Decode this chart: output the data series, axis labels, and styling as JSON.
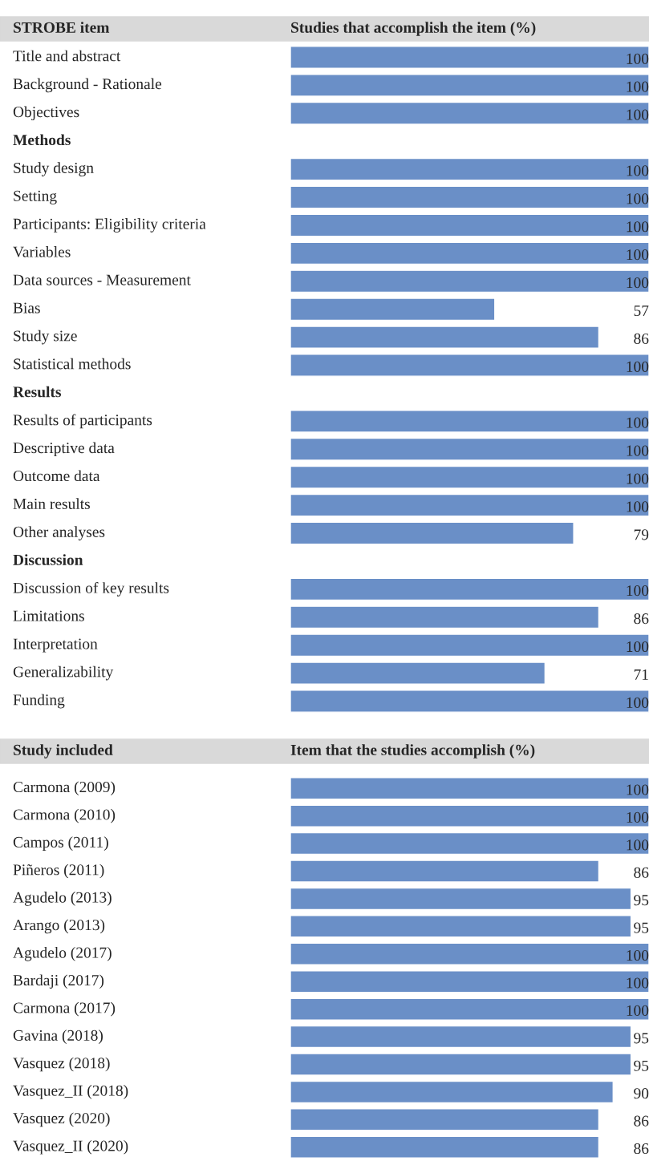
{
  "chart_data": [
    {
      "type": "bar",
      "orientation": "horizontal",
      "ylabel": "STROBE item",
      "xlabel": "Studies that accomplish the item (%)",
      "color": "#6a8fc7",
      "data_labels": true,
      "xlim": [
        0,
        100
      ],
      "categories": [
        "Title and abstract",
        "Background - Rationale",
        "Objectives",
        "Methods",
        "Study design",
        "Setting",
        "Participants: Eligibility criteria",
        "Variables",
        "Data sources - Measurement",
        "Bias",
        "Study size",
        "Statistical methods",
        "Results",
        "Results of participants",
        "Descriptive data",
        "Outcome data",
        "Main results",
        "Other analyses",
        "Discussion",
        "Discussion of key results",
        "Limitations",
        "Interpretation",
        "Generalizability",
        "Funding"
      ],
      "values": [
        100,
        100,
        100,
        null,
        100,
        100,
        100,
        100,
        100,
        57,
        86,
        100,
        null,
        100,
        100,
        100,
        100,
        79,
        null,
        100,
        86,
        100,
        71,
        100
      ]
    },
    {
      "type": "bar",
      "orientation": "horizontal",
      "ylabel": "Study included",
      "xlabel": "Item that the studies accomplish (%)",
      "color": "#6a8fc7",
      "data_labels": true,
      "xlim": [
        0,
        100
      ],
      "categories": [
        "Carmona (2009)",
        "Carmona (2010)",
        "Campos (2011)",
        "Piñeros (2011)",
        "Agudelo (2013)",
        "Arango (2013)",
        "Agudelo (2017)",
        "Bardaji (2017)",
        "Carmona (2017)",
        "Gavina (2018)",
        "Vasquez (2018)",
        "Vasquez_II (2018)",
        "Vasquez (2020)",
        "Vasquez_II (2020)"
      ],
      "values": [
        100,
        100,
        100,
        86,
        95,
        95,
        100,
        100,
        100,
        95,
        95,
        90,
        86,
        86
      ]
    }
  ]
}
